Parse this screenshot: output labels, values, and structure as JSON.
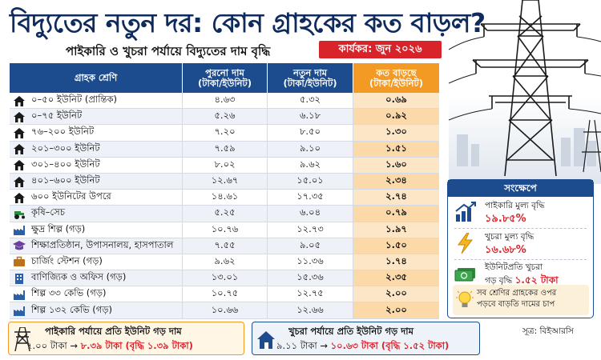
{
  "title": "বিদ্যুতের নতুন দর: কোন গ্রাহকের কত বাড়ল?",
  "subtitle": "পাইকারি ও খুচরা পর্যায়ে বিদ্যুতের দাম বৃদ্ধি",
  "effective": "কার্যকর: জুন ২০২৬",
  "table": {
    "headers": {
      "category": "গ্রাহক শ্রেণি",
      "old_line1": "পুরনো দাম",
      "old_line2": "(টাকা/ইউনিট)",
      "new_line1": "নতুন দাম",
      "new_line2": "(টাকা/ইউনিট)",
      "inc_line1": "কত বাড়ছে",
      "inc_line2": "(টাকা/ইউনিট)"
    },
    "rows": [
      {
        "icon": "house-icon",
        "category": "০–৫০ ইউনিট (প্রান্তিক)",
        "old": "৪.৬৩",
        "new": "৫.৩২",
        "increase": "০.৬৯"
      },
      {
        "icon": "house-icon",
        "category": "০–৭৫ ইউনিট",
        "old": "৫.২৬",
        "new": "৬.১৮",
        "increase": "০.৯২"
      },
      {
        "icon": "house-icon",
        "category": "৭৬–২০০ ইউনিট",
        "old": "৭.২০",
        "new": "৮.৫০",
        "increase": "১.৩০"
      },
      {
        "icon": "house-icon",
        "category": "২০১–৩০০ ইউনিট",
        "old": "৭.৫৯",
        "new": "৯.১০",
        "increase": "১.৫১"
      },
      {
        "icon": "house-icon",
        "category": "৩০১–৪০০ ইউনিট",
        "old": "৮.০২",
        "new": "৯.৬২",
        "increase": "১.৬০"
      },
      {
        "icon": "house-icon",
        "category": "৪০১–৬০০ ইউনিট",
        "old": "১২.৬৭",
        "new": "১৫.০১",
        "increase": "২.৩৪"
      },
      {
        "icon": "house-icon",
        "category": "৬০০ ইউনিটের উপরে",
        "old": "১৪.৬১",
        "new": "১৭.৩৫",
        "increase": "২.৭৪"
      },
      {
        "icon": "tractor-icon",
        "category": "কৃষি–সেচ",
        "old": "৫.২৫",
        "new": "৬.০৪",
        "increase": "০.৭৯"
      },
      {
        "icon": "factory-icon",
        "category": "ক্ষুদ্র শিল্প (গড়)",
        "old": "১০.৭৬",
        "new": "১২.৭৩",
        "increase": "১.৯৭"
      },
      {
        "icon": "graduation-cap-icon",
        "category": "শিক্ষাপ্রতিষ্ঠান, উপাসনালয়, হাসপাতাল",
        "old": "৭.৫৫",
        "new": "৯.০৫",
        "increase": "১.৫০"
      },
      {
        "icon": "briefcase-icon",
        "category": "চার্জিং স্টেশন (গড়)",
        "old": "৯.৬২",
        "new": "১১.৩৬",
        "increase": "১.৭৪"
      },
      {
        "icon": "office-building-icon",
        "category": "বাণিজ্যিক ও অফিস (গড়)",
        "old": "১৩.০১",
        "new": "১৫.৩৬",
        "increase": "২.৩৫"
      },
      {
        "icon": "factory-icon",
        "category": "শিল্প ৩৩ কেভি (গড়)",
        "old": "১০.৭৫",
        "new": "১২.৭৫",
        "increase": "২.০০"
      },
      {
        "icon": "factory-icon",
        "category": "শিল্প ১৩২ কেভি (গড়)",
        "old": "১০.৬৬",
        "new": "১২.৬৬",
        "increase": "২.০০"
      }
    ]
  },
  "summary": {
    "header": "সংক্ষেপে",
    "items": [
      {
        "icon": "bar-chart-up-icon",
        "label": "পাইকারি মুল্য বৃদ্ধি",
        "value": "১৯.৮৫%"
      },
      {
        "icon": "lightning-bolt-icon",
        "label": "খুচরা মুল্য বৃদ্ধি",
        "value": "১৬.৬৮%"
      },
      {
        "icon": "money-icon",
        "label": "ইউনিটপ্রতি খুচরা",
        "label2": "গড় বৃদ্ধি",
        "value": "১.৫২ টাকা"
      }
    ],
    "note_line1": "সব শ্রেণির গ্রাহকের ওপর",
    "note_line2": "পড়বে বাড়তি দামের চাপ"
  },
  "source": "সূত্র: বিইআরসি",
  "bottom": {
    "wholesale": {
      "title": "পাইকারি পর্যায়ে প্রতি ইউনিট গড় দাম",
      "old": "৭.০০ টাকা",
      "arrow": "→",
      "new_text": "৮.৩৯ টাকা (বৃদ্ধি ১.৩৯ টাকা)"
    },
    "retail": {
      "title": "খুচরা পর্যায়ে প্রতি ইউনিট গড় দাম",
      "old": "৯.১১ টাকা",
      "arrow": "→",
      "new_text": "১০.৬৩ টাকা (বৃদ্ধি ১.৫২ টাকা)"
    }
  },
  "colors": {
    "navy": "#1d4c8e",
    "orange": "#f39a25",
    "red": "#d8232a",
    "title": "#0f2a5c"
  }
}
